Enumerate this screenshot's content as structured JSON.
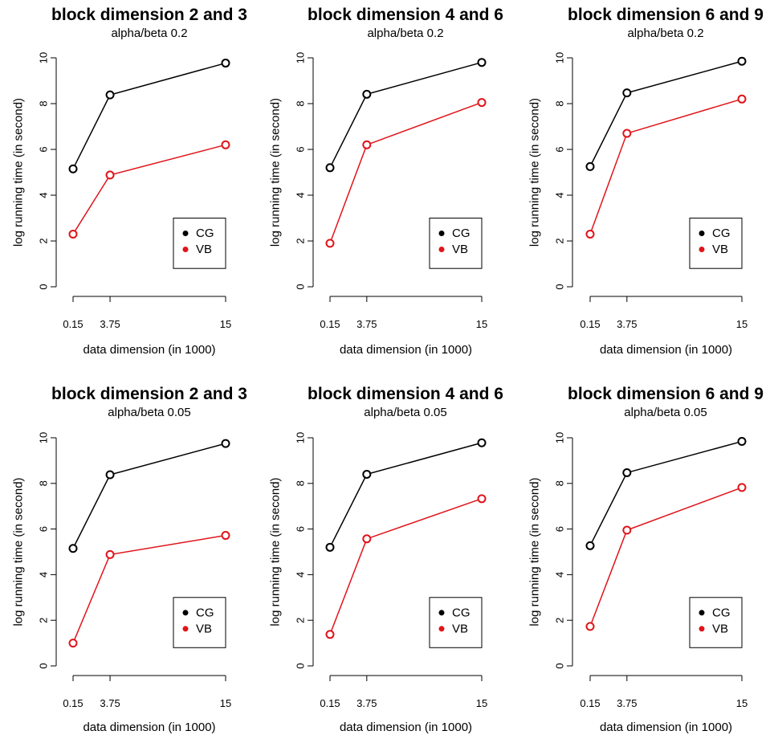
{
  "figure": {
    "background": "#ffffff"
  },
  "chart_data": [
    {
      "type": "line",
      "title": "block dimension 2 and 3",
      "subtitle": "alpha/beta 0.2",
      "xlabel": "data dimension (in 1000)",
      "ylabel": "log running time (in second)",
      "x": [
        0.15,
        3.75,
        15
      ],
      "x_tick_labels": [
        "0.15",
        "3.75",
        "15"
      ],
      "y_ticks": [
        0,
        2,
        4,
        6,
        8,
        10
      ],
      "ylim": [
        0,
        10
      ],
      "series": [
        {
          "name": "CG",
          "color": "#000000",
          "values": [
            5.15,
            8.38,
            9.77
          ]
        },
        {
          "name": "VB",
          "color": "#e0141a",
          "values": [
            2.3,
            4.88,
            6.2
          ]
        }
      ],
      "legend_position": "bottom-right",
      "grid": false
    },
    {
      "type": "line",
      "title": "block dimension 4 and 6",
      "subtitle": "alpha/beta 0.2",
      "xlabel": "data dimension (in 1000)",
      "ylabel": "log running time (in second)",
      "x": [
        0.15,
        3.75,
        15
      ],
      "x_tick_labels": [
        "0.15",
        "3.75",
        "15"
      ],
      "y_ticks": [
        0,
        2,
        4,
        6,
        8,
        10
      ],
      "ylim": [
        0,
        10
      ],
      "series": [
        {
          "name": "CG",
          "color": "#000000",
          "values": [
            5.2,
            8.41,
            9.8
          ]
        },
        {
          "name": "VB",
          "color": "#e0141a",
          "values": [
            1.9,
            6.2,
            8.05
          ]
        }
      ],
      "legend_position": "bottom-right",
      "grid": false
    },
    {
      "type": "line",
      "title": "block dimension 6 and 9",
      "subtitle": "alpha/beta 0.2",
      "xlabel": "data dimension (in 1000)",
      "ylabel": "log running time (in second)",
      "x": [
        0.15,
        3.75,
        15
      ],
      "x_tick_labels": [
        "0.15",
        "3.75",
        "15"
      ],
      "y_ticks": [
        0,
        2,
        4,
        6,
        8,
        10
      ],
      "ylim": [
        0,
        10
      ],
      "series": [
        {
          "name": "CG",
          "color": "#000000",
          "values": [
            5.25,
            8.47,
            9.85
          ]
        },
        {
          "name": "VB",
          "color": "#e0141a",
          "values": [
            2.3,
            6.7,
            8.2
          ]
        }
      ],
      "legend_position": "bottom-right",
      "grid": false
    },
    {
      "type": "line",
      "title": "block dimension 2 and 3",
      "subtitle": "alpha/beta 0.05",
      "xlabel": "data dimension (in 1000)",
      "ylabel": "log running time (in second)",
      "x": [
        0.15,
        3.75,
        15
      ],
      "x_tick_labels": [
        "0.15",
        "3.75",
        "15"
      ],
      "y_ticks": [
        0,
        2,
        4,
        6,
        8,
        10
      ],
      "ylim": [
        0,
        10
      ],
      "series": [
        {
          "name": "CG",
          "color": "#000000",
          "values": [
            5.15,
            8.38,
            9.75
          ]
        },
        {
          "name": "VB",
          "color": "#e0141a",
          "values": [
            1.0,
            4.88,
            5.72
          ]
        }
      ],
      "legend_position": "bottom-right",
      "grid": false
    },
    {
      "type": "line",
      "title": "block dimension 4 and 6",
      "subtitle": "alpha/beta 0.05",
      "xlabel": "data dimension (in 1000)",
      "ylabel": "log running time (in second)",
      "x": [
        0.15,
        3.75,
        15
      ],
      "x_tick_labels": [
        "0.15",
        "3.75",
        "15"
      ],
      "y_ticks": [
        0,
        2,
        4,
        6,
        8,
        10
      ],
      "ylim": [
        0,
        10
      ],
      "series": [
        {
          "name": "CG",
          "color": "#000000",
          "values": [
            5.2,
            8.4,
            9.78
          ]
        },
        {
          "name": "VB",
          "color": "#e0141a",
          "values": [
            1.38,
            5.57,
            7.33
          ]
        }
      ],
      "legend_position": "bottom-right",
      "grid": false
    },
    {
      "type": "line",
      "title": "block dimension 6 and 9",
      "subtitle": "alpha/beta 0.05",
      "xlabel": "data dimension (in 1000)",
      "ylabel": "log running time (in second)",
      "x": [
        0.15,
        3.75,
        15
      ],
      "x_tick_labels": [
        "0.15",
        "3.75",
        "15"
      ],
      "y_ticks": [
        0,
        2,
        4,
        6,
        8,
        10
      ],
      "ylim": [
        0,
        10
      ],
      "series": [
        {
          "name": "CG",
          "color": "#000000",
          "values": [
            5.27,
            8.47,
            9.84
          ]
        },
        {
          "name": "VB",
          "color": "#e0141a",
          "values": [
            1.73,
            5.95,
            7.82
          ]
        }
      ],
      "legend_position": "bottom-right",
      "grid": false
    }
  ]
}
